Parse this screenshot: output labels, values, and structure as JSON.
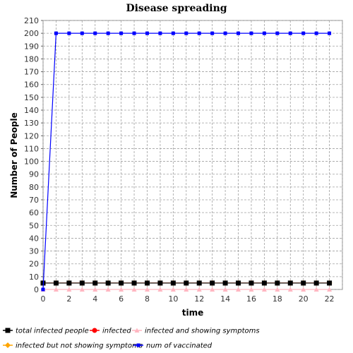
{
  "chart_data": {
    "type": "line",
    "title": "Disease spreading",
    "xlabel": "time",
    "ylabel": "Number of People",
    "xlim": [
      0,
      23
    ],
    "ylim": [
      0,
      210
    ],
    "x_ticks": [
      0,
      2,
      4,
      6,
      8,
      10,
      12,
      14,
      16,
      18,
      20,
      22
    ],
    "y_ticks": [
      0,
      10,
      20,
      30,
      40,
      50,
      60,
      70,
      80,
      90,
      100,
      110,
      120,
      130,
      140,
      150,
      160,
      170,
      180,
      190,
      200,
      210
    ],
    "grid": true,
    "legend_placement": "bottom",
    "x": [
      0,
      1,
      2,
      3,
      4,
      5,
      6,
      7,
      8,
      9,
      10,
      11,
      12,
      13,
      14,
      15,
      16,
      17,
      18,
      19,
      20,
      21,
      22
    ],
    "series": [
      {
        "name": "total infected people",
        "color": "#000000",
        "marker": "square",
        "values": [
          5,
          5,
          5,
          5,
          5,
          5,
          5,
          5,
          5,
          5,
          5,
          5,
          5,
          5,
          5,
          5,
          5,
          5,
          5,
          5,
          5,
          5,
          5
        ]
      },
      {
        "name": "infected",
        "color": "#ff0000",
        "marker": "circle",
        "values": [
          5,
          5,
          5,
          5,
          5,
          5,
          5,
          5,
          5,
          5,
          5,
          5,
          5,
          5,
          5,
          5,
          5,
          5,
          5,
          5,
          5,
          5,
          5
        ]
      },
      {
        "name": "infected and showing symptoms",
        "color": "#ffb6c1",
        "marker": "triangle",
        "values": [
          0,
          0,
          0,
          0,
          0,
          0,
          0,
          0,
          0,
          0,
          0,
          0,
          0,
          0,
          0,
          0,
          0,
          0,
          0,
          0,
          0,
          0,
          0
        ]
      },
      {
        "name": "infected but not showing symptoms",
        "color": "#ffa500",
        "marker": "diamond",
        "values": [
          5,
          5,
          5,
          5,
          5,
          5,
          5,
          5,
          5,
          5,
          5,
          5,
          5,
          5,
          5,
          5,
          5,
          5,
          5,
          5,
          5,
          5,
          5
        ]
      },
      {
        "name": "num of vaccinated",
        "color": "#0000ff",
        "marker": "small-square",
        "values": [
          0,
          200,
          200,
          200,
          200,
          200,
          200,
          200,
          200,
          200,
          200,
          200,
          200,
          200,
          200,
          200,
          200,
          200,
          200,
          200,
          200,
          200,
          200
        ]
      }
    ]
  }
}
